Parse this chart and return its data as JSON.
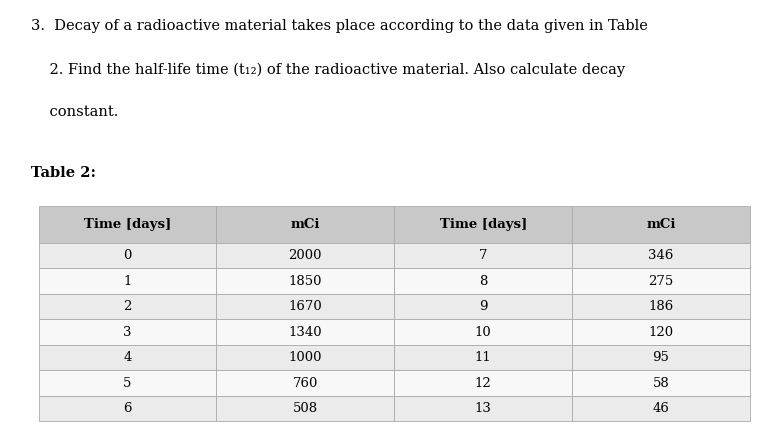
{
  "title_line1": "3.  Decay of a radioactive material takes place according to the data given in Table",
  "title_line2": "    2. Find the half-life time (t₁₂) of the radioactive material. Also calculate decay",
  "title_line3": "    constant.",
  "table_label": "Table 2:",
  "col_headers": [
    "Time [days]",
    "mCi",
    "Time [days]",
    "mCi"
  ],
  "left_time": [
    "0",
    "1",
    "2",
    "3",
    "4",
    "5",
    "6"
  ],
  "left_mci": [
    "2000",
    "1850",
    "1670",
    "1340",
    "1000",
    "760",
    "508"
  ],
  "right_time": [
    "7",
    "8",
    "9",
    "10",
    "11",
    "12",
    "13"
  ],
  "right_mci": [
    "346",
    "275",
    "186",
    "120",
    "95",
    "58",
    "46"
  ],
  "bg_color": "#ffffff",
  "text_color": "#000000",
  "table_header_bg": "#c8c8c8",
  "row_bg_odd": "#ebebeb",
  "row_bg_even": "#f8f8f8",
  "header_fontsize": 9.5,
  "body_fontsize": 9.5,
  "title_fontsize": 10.5,
  "table_label_fontsize": 10.5,
  "edge_color": "#aaaaaa"
}
